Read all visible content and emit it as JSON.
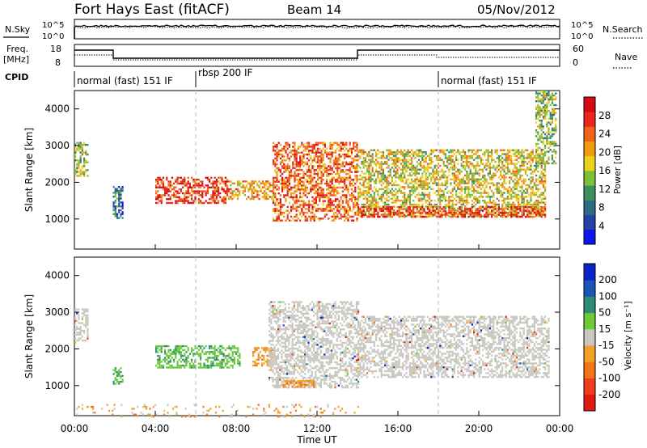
{
  "header": {
    "station": "Fort Hays East (fitACF)",
    "beam": "Beam 14",
    "date": "05/Nov/2012"
  },
  "panels": {
    "nsky_label": "N.Sky",
    "nsearch_label": "N.Search",
    "noise_left_ticks": [
      "10^5",
      "10^0"
    ],
    "noise_right_ticks": [
      "10^5",
      "10^0"
    ],
    "freq_label_1": "Freq.",
    "freq_label_2": "[MHz]",
    "freq_ticks": [
      "18",
      "8"
    ],
    "nave_label": "Nave",
    "nave_ticks": [
      "60",
      "0"
    ],
    "cpid_label": "CPID",
    "cpid_segments": [
      {
        "label": "normal (fast) 151 IF",
        "start_h": 0,
        "end_h": 6
      },
      {
        "label": "rbsp 200 IF",
        "start_h": 6,
        "end_h": 18
      },
      {
        "label": "normal (fast) 151 IF",
        "start_h": 18,
        "end_h": 24
      }
    ]
  },
  "chart_data": [
    {
      "type": "heatmap",
      "name": "power",
      "ylabel": "Slant Range [km]",
      "xlabel": "Time UT",
      "xlim": [
        0,
        24
      ],
      "ylim": [
        180,
        4500
      ],
      "x_ticks": [
        "00:00",
        "04:00",
        "08:00",
        "12:00",
        "16:00",
        "20:00",
        "00:00"
      ],
      "y_ticks": [
        1000,
        2000,
        3000,
        4000
      ],
      "colorbar": {
        "label": "Power [dB]",
        "ticks": [
          "4",
          "8",
          "12",
          "16",
          "20",
          "24",
          "28"
        ],
        "colors": [
          "#0b16e8",
          "#2442a8",
          "#2d6a86",
          "#3f8f63",
          "#7dbf3a",
          "#e8d21e",
          "#f19a12",
          "#f0641a",
          "#e8291c",
          "#d60a12"
        ]
      },
      "echo_regions": [
        {
          "t0": 0.0,
          "t1": 0.7,
          "r0": 2150,
          "r1": 3100,
          "level": 5
        },
        {
          "t0": 1.9,
          "t1": 2.4,
          "r0": 1050,
          "r1": 1900,
          "level": 3
        },
        {
          "t0": 4.0,
          "t1": 7.6,
          "r0": 1450,
          "r1": 2150,
          "level": 9
        },
        {
          "t0": 7.6,
          "t1": 9.8,
          "r0": 1550,
          "r1": 2050,
          "level": 7
        },
        {
          "t0": 9.8,
          "t1": 14.0,
          "r0": 950,
          "r1": 3100,
          "level": 8
        },
        {
          "t0": 14.0,
          "t1": 23.3,
          "r0": 1100,
          "r1": 2900,
          "level": 6
        },
        {
          "t0": 14.0,
          "t1": 23.3,
          "r0": 1050,
          "r1": 1350,
          "level": 9
        },
        {
          "t0": 22.8,
          "t1": 23.8,
          "r0": 2500,
          "r1": 4500,
          "level": 5
        }
      ]
    },
    {
      "type": "heatmap",
      "name": "velocity",
      "ylabel": "Slant Range [km]",
      "xlabel": "Time UT",
      "xlim": [
        0,
        24
      ],
      "ylim": [
        180,
        4500
      ],
      "x_ticks": [
        "00:00",
        "04:00",
        "08:00",
        "12:00",
        "16:00",
        "20:00",
        "00:00"
      ],
      "y_ticks": [
        1000,
        2000,
        3000,
        4000
      ],
      "colorbar": {
        "label": "Velocity [m s⁻¹]",
        "ticks": [
          "200",
          "100",
          "50",
          "15",
          "-15",
          "-50",
          "-100",
          "-200"
        ],
        "colors": [
          "#0a22c8",
          "#1c55b8",
          "#2b8a7a",
          "#6cc93a",
          "#c8c8c0",
          "#f2a126",
          "#f27418",
          "#ee3f1a",
          "#e01a12"
        ]
      },
      "echo_regions": [
        {
          "t0": 0.0,
          "t1": 0.7,
          "r0": 2150,
          "r1": 3100,
          "class": "ground"
        },
        {
          "t0": 1.9,
          "t1": 2.4,
          "r0": 1050,
          "r1": 1500,
          "class": "green"
        },
        {
          "t0": 4.0,
          "t1": 8.2,
          "r0": 1500,
          "r1": 2100,
          "class": "green"
        },
        {
          "t0": 8.8,
          "t1": 9.8,
          "r0": 1550,
          "r1": 2050,
          "class": "orange"
        },
        {
          "t0": 9.6,
          "t1": 14.0,
          "r0": 950,
          "r1": 3300,
          "class": "ground"
        },
        {
          "t0": 14.0,
          "t1": 23.5,
          "r0": 1250,
          "r1": 2900,
          "class": "ground"
        },
        {
          "t0": 10.3,
          "t1": 11.8,
          "r0": 950,
          "r1": 1150,
          "class": "orange"
        },
        {
          "t0": 0.0,
          "t1": 14.0,
          "r0": 180,
          "r1": 500,
          "class": "orange_sparse"
        }
      ]
    }
  ]
}
